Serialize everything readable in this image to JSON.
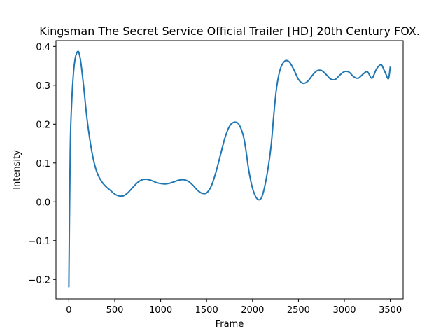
{
  "chart_data": {
    "type": "line",
    "title": "Kingsman The Secret Service  Official Trailer [HD]  20th Century FOX.",
    "xlabel": "Frame",
    "ylabel": "Intensity",
    "xlim": [
      -140,
      3640
    ],
    "ylim": [
      -0.25,
      0.415
    ],
    "x_ticks": [
      0,
      500,
      1000,
      1500,
      2000,
      2500,
      3000,
      3500
    ],
    "y_ticks": [
      -0.2,
      -0.1,
      0.0,
      0.1,
      0.2,
      0.3,
      0.4
    ],
    "y_tick_labels": [
      "−0.2",
      "−0.1",
      "0.0",
      "0.1",
      "0.2",
      "0.3",
      "0.4"
    ],
    "grid": false,
    "series": [
      {
        "color": "#1f77b4",
        "x": [
          0,
          15,
          30,
          50,
          70,
          90,
          100,
          110,
          130,
          160,
          200,
          250,
          300,
          350,
          400,
          450,
          500,
          550,
          600,
          650,
          700,
          750,
          800,
          850,
          900,
          950,
          1000,
          1050,
          1100,
          1150,
          1200,
          1250,
          1300,
          1350,
          1400,
          1450,
          1500,
          1550,
          1600,
          1650,
          1700,
          1750,
          1800,
          1850,
          1900,
          1930,
          1960,
          2000,
          2050,
          2100,
          2150,
          2200,
          2230,
          2260,
          2300,
          2350,
          2400,
          2450,
          2500,
          2550,
          2600,
          2650,
          2700,
          2750,
          2800,
          2850,
          2900,
          2950,
          3000,
          3050,
          3100,
          3150,
          3200,
          3250,
          3300,
          3350,
          3400,
          3430,
          3450,
          3480,
          3500
        ],
        "y": [
          -0.22,
          0.13,
          0.25,
          0.33,
          0.37,
          0.385,
          0.387,
          0.384,
          0.36,
          0.3,
          0.21,
          0.13,
          0.08,
          0.055,
          0.04,
          0.03,
          0.02,
          0.015,
          0.016,
          0.025,
          0.038,
          0.05,
          0.057,
          0.058,
          0.055,
          0.05,
          0.047,
          0.046,
          0.048,
          0.052,
          0.056,
          0.057,
          0.053,
          0.043,
          0.03,
          0.022,
          0.023,
          0.04,
          0.075,
          0.12,
          0.165,
          0.195,
          0.205,
          0.2,
          0.17,
          0.13,
          0.08,
          0.035,
          0.008,
          0.012,
          0.06,
          0.14,
          0.22,
          0.29,
          0.34,
          0.362,
          0.36,
          0.34,
          0.315,
          0.305,
          0.31,
          0.325,
          0.337,
          0.338,
          0.328,
          0.316,
          0.315,
          0.326,
          0.335,
          0.334,
          0.322,
          0.318,
          0.328,
          0.335,
          0.318,
          0.342,
          0.353,
          0.34,
          0.33,
          0.317,
          0.348
        ]
      }
    ]
  }
}
